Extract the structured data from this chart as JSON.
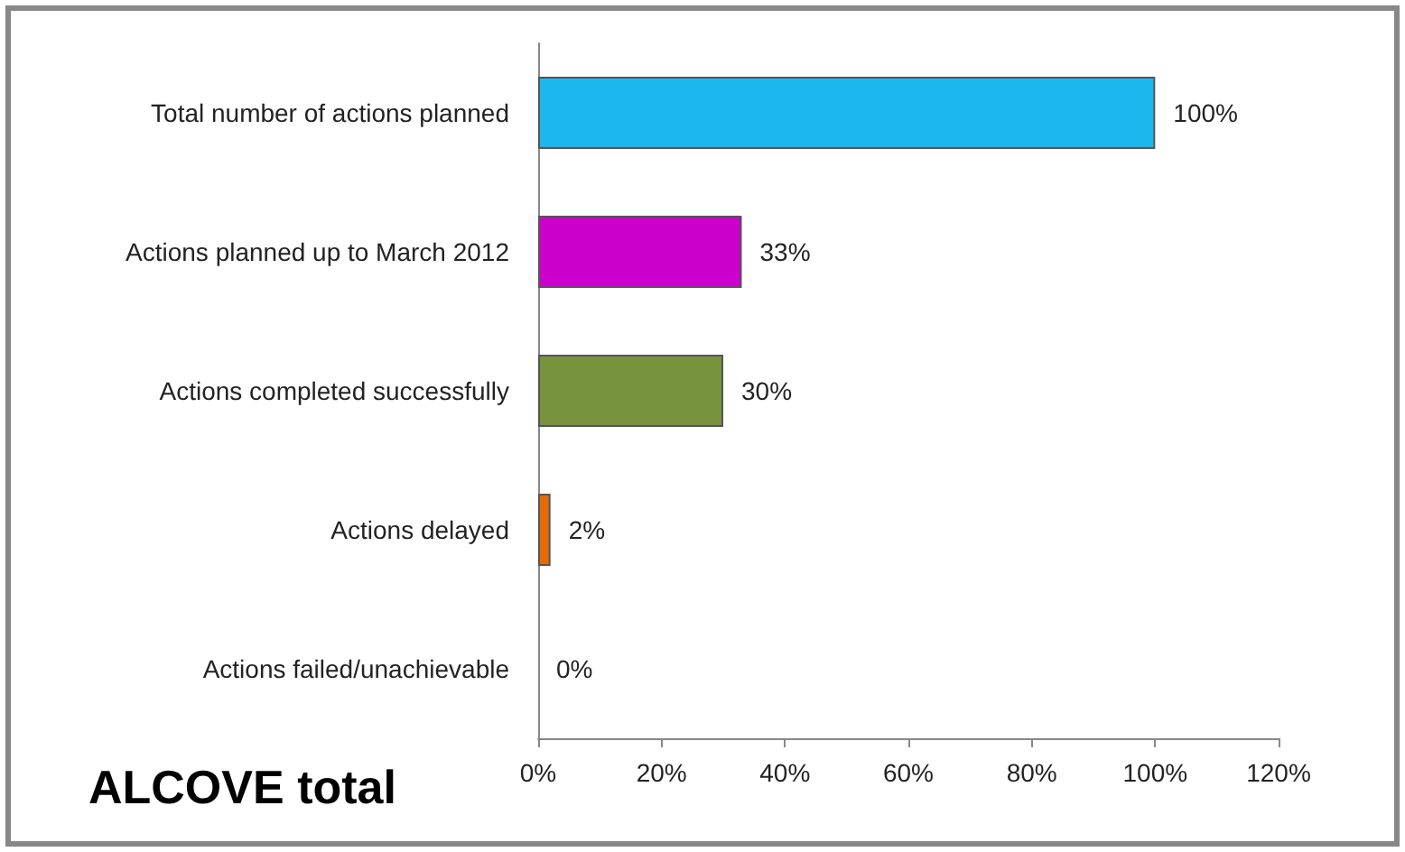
{
  "chart_data": {
    "type": "bar",
    "orientation": "horizontal",
    "title": "ALCOVE total",
    "categories": [
      "Total number of actions planned",
      "Actions planned up to March 2012",
      "Actions completed successfully",
      "Actions delayed",
      "Actions failed/unachievable"
    ],
    "values": [
      100,
      33,
      30,
      2,
      0
    ],
    "colors": [
      "#1ab8ec",
      "#cc00cc",
      "#77933c",
      "#e46c0a",
      "#4f81bd"
    ],
    "value_labels": [
      "100%",
      "33%",
      "30%",
      "2%",
      "0%"
    ],
    "xlim": [
      0,
      120
    ],
    "xticks": [
      {
        "value": 0,
        "label": "0%"
      },
      {
        "value": 20,
        "label": "20%"
      },
      {
        "value": 40,
        "label": "40%"
      },
      {
        "value": 60,
        "label": "60%"
      },
      {
        "value": 80,
        "label": "80%"
      },
      {
        "value": 100,
        "label": "100%"
      },
      {
        "value": 120,
        "label": "120%"
      }
    ],
    "grid": false
  }
}
